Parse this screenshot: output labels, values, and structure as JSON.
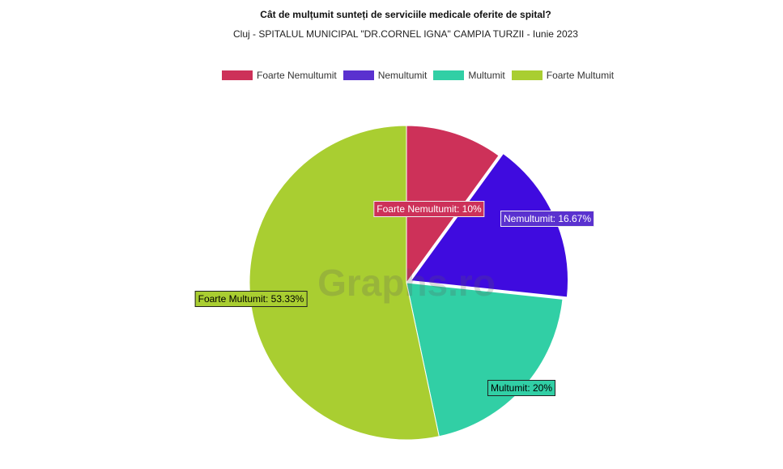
{
  "chart_data": {
    "type": "pie",
    "title": "Cât de mulțumit sunteți de serviciile medicale oferite de spital?",
    "subtitle": "Cluj - SPITALUL MUNICIPAL \"DR.CORNEL IGNA\" CAMPIA TURZII - Iunie 2023",
    "legend_position": "top",
    "categories": [
      "Foarte Nemultumit",
      "Nemultumit",
      "Multumit",
      "Foarte Multumit"
    ],
    "values": [
      10,
      16.67,
      20,
      53.33
    ],
    "colors": [
      "#cd3159",
      "#3f0bdf",
      "#31cfa5",
      "#a9ce31"
    ],
    "legend_colors": [
      "#cd3159",
      "#5a31cf",
      "#31cfa5",
      "#a9ce31"
    ],
    "data_labels": [
      "Foarte Nemultumit: 10%",
      "Nemultumit: 16.67%",
      "Multumit: 20%",
      "Foarte Multumit: 53.33%"
    ],
    "label_colors": [
      {
        "bg": "#cd3159",
        "fg": "#ffffff"
      },
      {
        "bg": "#5a31cf",
        "fg": "#ffffff"
      },
      {
        "bg": "#31cfa5",
        "fg": "#000000"
      },
      {
        "bg": "#a9ce31",
        "fg": "#000000"
      }
    ]
  },
  "watermark": "Graphs.ro"
}
